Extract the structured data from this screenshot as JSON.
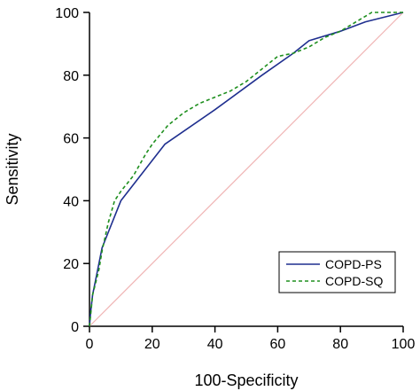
{
  "chart_data": {
    "type": "line",
    "title": "",
    "xlabel": "100-Specificity",
    "ylabel": "Sensitivity",
    "xlim": [
      0,
      100
    ],
    "ylim": [
      0,
      100
    ],
    "x_ticks": [
      "0",
      "20",
      "40",
      "60",
      "80",
      "100"
    ],
    "y_ticks": [
      "0",
      "20",
      "40",
      "60",
      "80",
      "100"
    ],
    "grid": false,
    "legend_position": "bottom-right",
    "reference_line": {
      "x": [
        0,
        100
      ],
      "y": [
        0,
        100
      ],
      "color": "#f0b4b4"
    },
    "series": [
      {
        "name": "COPD-PS",
        "color": "#1f2f8f",
        "style": "solid",
        "x": [
          0,
          0.3,
          1,
          2,
          4,
          10,
          24,
          40,
          55,
          65,
          70,
          80,
          88,
          100
        ],
        "y": [
          0,
          4,
          10,
          15,
          25,
          40,
          58,
          69,
          80,
          87,
          91,
          94,
          97,
          100
        ]
      },
      {
        "name": "COPD-SQ",
        "color": "#1e8f1e",
        "style": "dashed",
        "x": [
          0,
          0.5,
          1,
          2,
          3,
          4,
          6,
          8,
          10,
          14,
          18,
          20,
          25,
          30,
          35,
          40,
          45,
          50,
          55,
          60,
          65,
          70,
          75,
          80,
          85,
          90,
          95,
          100
        ],
        "y": [
          0,
          5,
          10,
          14,
          18,
          24,
          33,
          40,
          43,
          48,
          55,
          58,
          64,
          68,
          71,
          73,
          75,
          78,
          82,
          86,
          87,
          89,
          92,
          94,
          97,
          100,
          100,
          100
        ]
      }
    ]
  }
}
